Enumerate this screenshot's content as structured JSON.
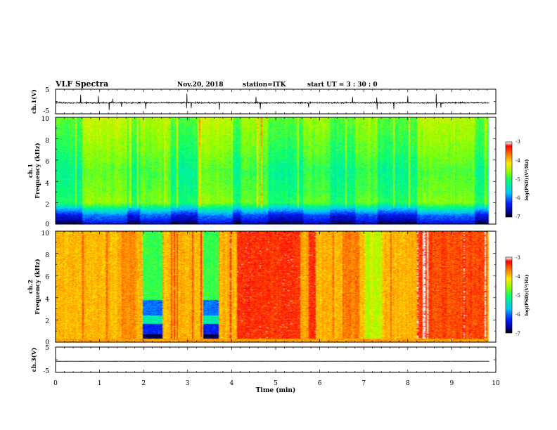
{
  "header": {
    "title": "VLF Spectra",
    "date": "Nov.20, 2018",
    "station": "station=ITK",
    "start": "start  UT =  3 : 30 : 0"
  },
  "chart_data": [
    {
      "id": "ch1-wave",
      "type": "line",
      "ylabel": "ch.1(V)",
      "ylim": [
        -5,
        5
      ],
      "yticks": [
        "5",
        "-5"
      ],
      "xlim": [
        0,
        10
      ],
      "baseline": -0.5,
      "data_end_min": 9.85,
      "noise": 0.4,
      "spikes_min": [
        0.57,
        0.97,
        1.22,
        1.3,
        1.5,
        2.05,
        2.98,
        3.08,
        3.72,
        4.55,
        4.65,
        5.75,
        6.75,
        7.3,
        7.68,
        8.0,
        8.65,
        8.75
      ]
    },
    {
      "id": "ch1-spec",
      "type": "heatmap",
      "ylabel": "ch.1",
      "ylabel2": "Frequency (kHz)",
      "ylim": [
        0,
        10
      ],
      "yticks": [
        "0",
        "2",
        "4",
        "6",
        "8",
        "10"
      ],
      "xlim": [
        0,
        10
      ],
      "data_end_min": 9.85,
      "colorbar": {
        "label": "log(PSD)(V²/Hz)",
        "range": [
          -7,
          -3
        ],
        "ticks": [
          "-3",
          "-4",
          "-5",
          "-6",
          "-7"
        ]
      },
      "profile": [
        [
          0,
          -6.9
        ],
        [
          0.4,
          -6.6
        ],
        [
          0.8,
          -6.4
        ],
        [
          1.5,
          -5.6
        ],
        [
          2.0,
          -5.0
        ],
        [
          3.0,
          -5.1
        ],
        [
          5.0,
          -5.2
        ],
        [
          7.0,
          -5.0
        ],
        [
          8.5,
          -4.9
        ],
        [
          10,
          -4.8
        ]
      ],
      "bright_segments": [
        [
          0.6,
          1.6,
          0.45
        ],
        [
          1.9,
          2.6,
          0.35
        ],
        [
          3.2,
          4.0,
          0.45
        ],
        [
          4.2,
          4.8,
          0.3
        ],
        [
          5.6,
          6.2,
          0.3
        ],
        [
          6.8,
          7.3,
          0.3
        ],
        [
          8.2,
          9.5,
          0.4
        ]
      ]
    },
    {
      "id": "ch2-spec",
      "type": "heatmap",
      "ylabel": "ch.2",
      "ylabel2": "Frequency (kHz)",
      "ylim": [
        0,
        10
      ],
      "yticks": [
        "0",
        "2",
        "4",
        "6",
        "8",
        "10"
      ],
      "xlim": [
        0,
        10
      ],
      "data_end_min": 9.85,
      "colorbar": {
        "label": "log(PSD)(V²/Hz)",
        "range": [
          -7,
          -3
        ],
        "ticks": [
          "-3",
          "-4",
          "-5",
          "-6",
          "-7"
        ]
      },
      "base_level": -3.9,
      "quiet_segments": [
        [
          1.97,
          2.42
        ],
        [
          3.35,
          3.68
        ]
      ],
      "intense_segments": [
        [
          4.1,
          5.9,
          0.55
        ],
        [
          8.2,
          9.8,
          0.45
        ],
        [
          1.5,
          1.8,
          0.2
        ],
        [
          6.5,
          6.9,
          0.25
        ]
      ],
      "weak_segments": [
        [
          7.0,
          7.4
        ],
        [
          5.55,
          5.75
        ]
      ]
    },
    {
      "id": "ch3-wave",
      "type": "line",
      "ylabel": "ch.3(V)",
      "ylim": [
        -5,
        5
      ],
      "yticks": [
        "5",
        "-5"
      ],
      "xlim": [
        0,
        10
      ],
      "xlabel": "Time  (min)",
      "xticks": [
        "0",
        "1",
        "2",
        "3",
        "4",
        "5",
        "6",
        "7",
        "8",
        "9",
        "10"
      ],
      "baseline": -0.6,
      "data_end_min": 9.85,
      "noise": 0.05,
      "spikes_min": []
    }
  ]
}
